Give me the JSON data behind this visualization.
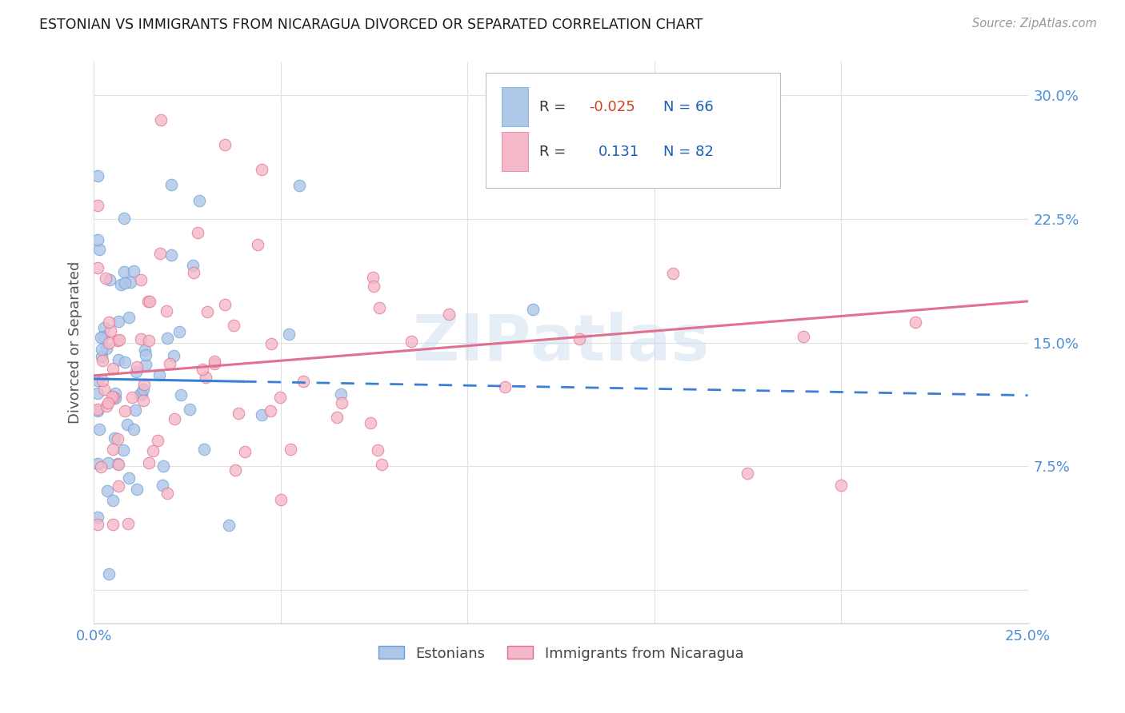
{
  "title": "ESTONIAN VS IMMIGRANTS FROM NICARAGUA DIVORCED OR SEPARATED CORRELATION CHART",
  "source": "Source: ZipAtlas.com",
  "ylabel": "Divorced or Separated",
  "xlim": [
    0.0,
    0.25
  ],
  "ylim": [
    -0.02,
    0.32
  ],
  "xtick_positions": [
    0.0,
    0.05,
    0.1,
    0.15,
    0.2,
    0.25
  ],
  "xtick_labels": [
    "0.0%",
    "",
    "",
    "",
    "",
    "25.0%"
  ],
  "ytick_positions": [
    0.0,
    0.075,
    0.15,
    0.225,
    0.3
  ],
  "ytick_labels": [
    "",
    "7.5%",
    "15.0%",
    "22.5%",
    "30.0%"
  ],
  "estonian_color": "#aec6e8",
  "nicaragua_color": "#f5b8c8",
  "estonian_edge": "#6a9fd4",
  "nicaragua_edge": "#e07090",
  "trend_estonian_color": "#3a7fd5",
  "trend_nicaragua_color": "#e07090",
  "background_color": "#ffffff",
  "grid_color": "#e0e0e0",
  "title_color": "#1a1a1a",
  "axis_label_color": "#4a90d9",
  "watermark_color": "#ccddf0",
  "R_estonian": -0.025,
  "N_estonian": 66,
  "R_nicaragua": 0.131,
  "N_nicaragua": 82,
  "trend_est_y0": 0.128,
  "trend_est_y1": 0.118,
  "trend_nic_y0": 0.13,
  "trend_nic_y1": 0.175
}
